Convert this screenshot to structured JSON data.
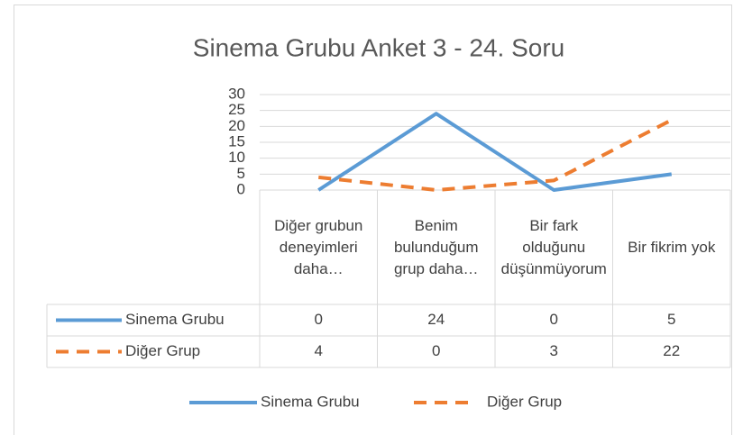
{
  "chart_data": {
    "type": "line",
    "title": "Sinema Grubu Anket 3 - 24. Soru",
    "categories": [
      "Diğer grubun deneyimleri daha…",
      "Benim bulunduğum grup daha…",
      "Bir fark olduğunu düşünmüyorum",
      "Bir fikrim yok"
    ],
    "series": [
      {
        "name": "Sinema Grubu",
        "color": "#5b9bd5",
        "dash": false,
        "values": [
          0,
          24,
          0,
          5
        ]
      },
      {
        "name": "Diğer Grup",
        "color": "#ed7d31",
        "dash": true,
        "values": [
          4,
          0,
          3,
          22
        ]
      }
    ],
    "ylim": [
      0,
      30
    ],
    "yticks": [
      0,
      5,
      10,
      15,
      20,
      25,
      30
    ],
    "grid": true,
    "data_table": true,
    "legend": "bottom"
  }
}
